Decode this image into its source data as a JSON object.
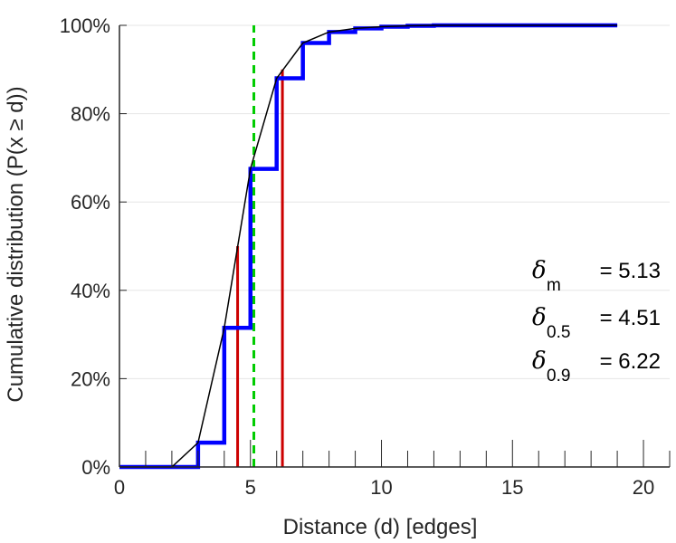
{
  "chart_data": {
    "type": "line",
    "title": "",
    "xlabel": "Distance (d) [edges]",
    "ylabel": "Cumulative distribution (P(x ≥ d))",
    "xlim": [
      0,
      21
    ],
    "ylim": [
      0,
      100
    ],
    "x_ticks": [
      0,
      5,
      10,
      15,
      20
    ],
    "x_tick_labels": [
      "0",
      "5",
      "10",
      "15",
      "20"
    ],
    "y_ticks": [
      0,
      20,
      40,
      60,
      80,
      100
    ],
    "y_tick_labels": [
      "0%",
      "20%",
      "40%",
      "60%",
      "80%",
      "100%"
    ],
    "grid": "horizontal",
    "series": [
      {
        "style": "step",
        "color": "#0000ff",
        "x": [
          0,
          1,
          2,
          3,
          4,
          5,
          6,
          7,
          8,
          9,
          10,
          11,
          12,
          13,
          14,
          15,
          16,
          17,
          18,
          19
        ],
        "y": [
          0,
          0,
          0,
          5.5,
          31.5,
          67.5,
          88,
          96,
          98.5,
          99.3,
          99.7,
          99.9,
          100,
          100,
          100,
          100,
          100,
          100,
          100,
          100
        ]
      },
      {
        "style": "line",
        "color": "#000000",
        "x": [
          0,
          1,
          2,
          3,
          4,
          5,
          6,
          7,
          8,
          9,
          10,
          11,
          12,
          13,
          14,
          15,
          16,
          17,
          18,
          19
        ],
        "y": [
          0,
          0,
          0,
          5.5,
          31.5,
          67.5,
          88,
          96,
          98.5,
          99.3,
          99.7,
          99.9,
          100,
          100,
          100,
          100,
          100,
          100,
          100,
          100
        ]
      }
    ],
    "reference_lines": [
      {
        "x": 4.51,
        "y_from": 0,
        "y_to": 50,
        "color": "#cc0000",
        "style": "solid"
      },
      {
        "x": 6.22,
        "y_from": 0,
        "y_to": 90,
        "color": "#cc0000",
        "style": "solid"
      },
      {
        "x": 5.13,
        "y_from": 0,
        "y_to": 100,
        "color": "#00cc00",
        "style": "dashed"
      }
    ],
    "annotations": [
      {
        "symbol": "δ",
        "subscript": "m",
        "text": "= 5.13"
      },
      {
        "symbol": "δ",
        "subscript": "0.5",
        "text": "= 4.51"
      },
      {
        "symbol": "δ",
        "subscript": "0.9",
        "text": "= 6.22"
      }
    ]
  }
}
